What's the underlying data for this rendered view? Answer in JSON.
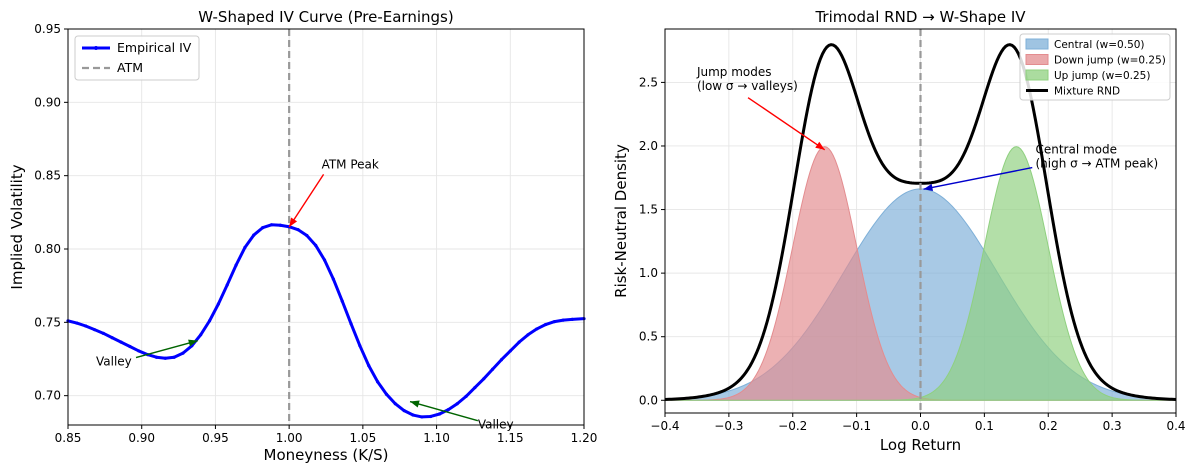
{
  "chart_data": [
    {
      "type": "line",
      "title": "W-Shaped IV Curve (Pre-Earnings)",
      "xlabel": "Moneyness (K/S)",
      "ylabel": "Implied Volatility",
      "xlim": [
        0.85,
        1.2
      ],
      "ylim": [
        0.68,
        0.95
      ],
      "xticks": [
        "0.85",
        "0.90",
        "0.95",
        "1.00",
        "1.05",
        "1.10",
        "1.15",
        "1.20"
      ],
      "yticks": [
        "0.70",
        "0.75",
        "0.80",
        "0.85",
        "0.90",
        "0.95"
      ],
      "grid": true,
      "legend_position": "top-left",
      "series": [
        {
          "name": "Empirical IV",
          "color": "#0000ff",
          "x": [
            0.85,
            0.856,
            0.862,
            0.868,
            0.874,
            0.88,
            0.886,
            0.892,
            0.898,
            0.904,
            0.91,
            0.916,
            0.922,
            0.928,
            0.934,
            0.94,
            0.946,
            0.952,
            0.958,
            0.964,
            0.97,
            0.976,
            0.982,
            0.988,
            0.994,
            1.0,
            1.006,
            1.012,
            1.018,
            1.024,
            1.03,
            1.036,
            1.042,
            1.048,
            1.054,
            1.06,
            1.066,
            1.072,
            1.078,
            1.084,
            1.09,
            1.096,
            1.102,
            1.108,
            1.114,
            1.12,
            1.126,
            1.132,
            1.138,
            1.144,
            1.15,
            1.156,
            1.162,
            1.168,
            1.174,
            1.18,
            1.186,
            1.192,
            1.2
          ],
          "y": [
            0.751,
            0.7495,
            0.7475,
            0.745,
            0.7425,
            0.7395,
            0.7365,
            0.7335,
            0.7305,
            0.728,
            0.7262,
            0.7255,
            0.7262,
            0.729,
            0.734,
            0.7415,
            0.751,
            0.7625,
            0.7755,
            0.789,
            0.801,
            0.8095,
            0.8145,
            0.8165,
            0.8162,
            0.8152,
            0.8132,
            0.8092,
            0.8025,
            0.7925,
            0.7795,
            0.7645,
            0.749,
            0.734,
            0.7205,
            0.7095,
            0.701,
            0.6945,
            0.6898,
            0.6868,
            0.6855,
            0.6858,
            0.6875,
            0.6905,
            0.6945,
            0.6995,
            0.7055,
            0.7115,
            0.718,
            0.7245,
            0.7305,
            0.7365,
            0.7415,
            0.7455,
            0.7485,
            0.7505,
            0.7515,
            0.752,
            0.7525
          ]
        },
        {
          "name": "ATM",
          "color": "#999999",
          "x_value": 1.0
        }
      ],
      "annotations": [
        {
          "text": "ATM Peak",
          "color": "#ff0000",
          "x": 1.0,
          "y": 0.815,
          "text_x": 1.022,
          "text_y": 0.855
        },
        {
          "text": "Valley",
          "color": "#006400",
          "x": 0.938,
          "y": 0.7375,
          "text_x": 0.869,
          "text_y": 0.7205
        },
        {
          "text": "Valley",
          "color": "#006400",
          "x": 1.082,
          "y": 0.696,
          "text_x": 1.128,
          "text_y": 0.6775
        }
      ]
    },
    {
      "type": "area",
      "title": "Trimodal RND → W-Shape IV",
      "xlabel": "Log Return",
      "ylabel": "Risk-Neutral Density",
      "xlim": [
        -0.4,
        0.4
      ],
      "ylim": [
        -0.1,
        2.92
      ],
      "xticks": [
        "−0.4",
        "−0.3",
        "−0.2",
        "−0.1",
        "0.0",
        "0.1",
        "0.2",
        "0.3",
        "0.4"
      ],
      "yticks": [
        "0.0",
        "0.5",
        "1.0",
        "1.5",
        "2.0",
        "2.5"
      ],
      "grid": true,
      "legend_position": "top-right",
      "series": [
        {
          "name": "Central (w=0.50)",
          "fill": "#7fb0d8",
          "mean": 0.0,
          "sigma": 0.12,
          "weight": 0.5
        },
        {
          "name": "Down jump (w=0.25)",
          "fill": "#e38c8f",
          "mean": -0.15,
          "sigma": 0.05,
          "weight": 0.25
        },
        {
          "name": "Up jump (w=0.25)",
          "fill": "#8fd07f",
          "mean": 0.15,
          "sigma": 0.05,
          "weight": 0.25
        },
        {
          "name": "Mixture RND",
          "color": "#000000"
        },
        {
          "name": "",
          "color": "#999999",
          "x_value": 0.0
        }
      ],
      "annotations": [
        {
          "lines": [
            "Jump modes",
            "(low σ → valleys)"
          ],
          "color": "#ff0000",
          "x": -0.15,
          "y": 1.97,
          "text_x": -0.35,
          "text_y": 2.55
        },
        {
          "lines": [
            "Central mode",
            "(high σ → ATM peak)"
          ],
          "color": "#0000cc",
          "x": 0.0,
          "y": 1.66,
          "text_x": 0.18,
          "text_y": 1.94
        }
      ]
    }
  ]
}
